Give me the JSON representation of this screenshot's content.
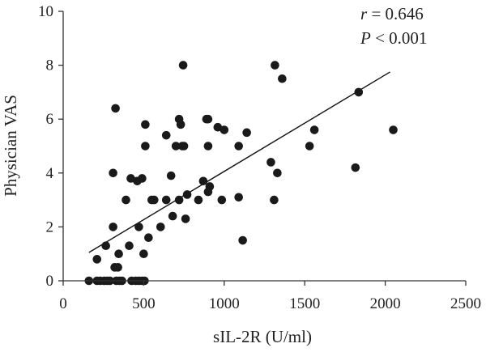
{
  "chart_data": {
    "type": "scatter",
    "xlabel": "sIL-2R (U/ml)",
    "ylabel": "Physician VAS",
    "xlim": [
      0,
      2500
    ],
    "ylim": [
      0,
      10
    ],
    "x_ticks": [
      "0",
      "500",
      "1000",
      "1500",
      "2000",
      "2500"
    ],
    "y_ticks": [
      "0",
      "2",
      "4",
      "6",
      "8",
      "10"
    ],
    "grid": false,
    "annotations": {
      "r_symbol": "r",
      "r_value": " = 0.646",
      "p_symbol": "P",
      "p_value": " < 0.001"
    },
    "trendline": {
      "x": [
        160,
        2030
      ],
      "y": [
        1.05,
        7.75
      ]
    },
    "points": [
      {
        "x": 160,
        "y": 0
      },
      {
        "x": 210,
        "y": 0
      },
      {
        "x": 230,
        "y": 0
      },
      {
        "x": 255,
        "y": 0
      },
      {
        "x": 275,
        "y": 0
      },
      {
        "x": 290,
        "y": 0
      },
      {
        "x": 330,
        "y": 0
      },
      {
        "x": 350,
        "y": 0
      },
      {
        "x": 365,
        "y": 0
      },
      {
        "x": 425,
        "y": 0
      },
      {
        "x": 450,
        "y": 0
      },
      {
        "x": 470,
        "y": 0
      },
      {
        "x": 490,
        "y": 0
      },
      {
        "x": 505,
        "y": 0
      },
      {
        "x": 210,
        "y": 0.8
      },
      {
        "x": 320,
        "y": 0.5
      },
      {
        "x": 340,
        "y": 0.5
      },
      {
        "x": 345,
        "y": 1.0
      },
      {
        "x": 500,
        "y": 1.0
      },
      {
        "x": 265,
        "y": 1.3
      },
      {
        "x": 410,
        "y": 1.3
      },
      {
        "x": 530,
        "y": 1.6
      },
      {
        "x": 470,
        "y": 2.0
      },
      {
        "x": 310,
        "y": 2.0
      },
      {
        "x": 605,
        "y": 2.0
      },
      {
        "x": 680,
        "y": 2.4
      },
      {
        "x": 760,
        "y": 2.3
      },
      {
        "x": 390,
        "y": 3.0
      },
      {
        "x": 550,
        "y": 3.0
      },
      {
        "x": 565,
        "y": 3.0
      },
      {
        "x": 640,
        "y": 3.0
      },
      {
        "x": 720,
        "y": 3.0
      },
      {
        "x": 770,
        "y": 3.2
      },
      {
        "x": 840,
        "y": 3.0
      },
      {
        "x": 985,
        "y": 3.0
      },
      {
        "x": 1090,
        "y": 3.1
      },
      {
        "x": 1115,
        "y": 1.5
      },
      {
        "x": 1310,
        "y": 3.0
      },
      {
        "x": 310,
        "y": 4.0
      },
      {
        "x": 420,
        "y": 3.8
      },
      {
        "x": 460,
        "y": 3.7
      },
      {
        "x": 490,
        "y": 3.8
      },
      {
        "x": 670,
        "y": 3.9
      },
      {
        "x": 870,
        "y": 3.7
      },
      {
        "x": 900,
        "y": 3.3
      },
      {
        "x": 910,
        "y": 3.5
      },
      {
        "x": 1290,
        "y": 4.4
      },
      {
        "x": 1330,
        "y": 4.0
      },
      {
        "x": 1815,
        "y": 4.2
      },
      {
        "x": 510,
        "y": 5.0
      },
      {
        "x": 700,
        "y": 5.0
      },
      {
        "x": 740,
        "y": 5.0
      },
      {
        "x": 750,
        "y": 5.0
      },
      {
        "x": 900,
        "y": 5.0
      },
      {
        "x": 1090,
        "y": 5.0
      },
      {
        "x": 1530,
        "y": 5.0
      },
      {
        "x": 640,
        "y": 5.4
      },
      {
        "x": 960,
        "y": 5.7
      },
      {
        "x": 1000,
        "y": 5.6
      },
      {
        "x": 1140,
        "y": 5.5
      },
      {
        "x": 1560,
        "y": 5.6
      },
      {
        "x": 2050,
        "y": 5.6
      },
      {
        "x": 510,
        "y": 5.8
      },
      {
        "x": 730,
        "y": 5.8
      },
      {
        "x": 720,
        "y": 6.0
      },
      {
        "x": 890,
        "y": 6.0
      },
      {
        "x": 900,
        "y": 6.0
      },
      {
        "x": 325,
        "y": 6.4
      },
      {
        "x": 1835,
        "y": 7.0
      },
      {
        "x": 1360,
        "y": 7.5
      },
      {
        "x": 745,
        "y": 8.0
      },
      {
        "x": 1315,
        "y": 8.0
      }
    ]
  }
}
